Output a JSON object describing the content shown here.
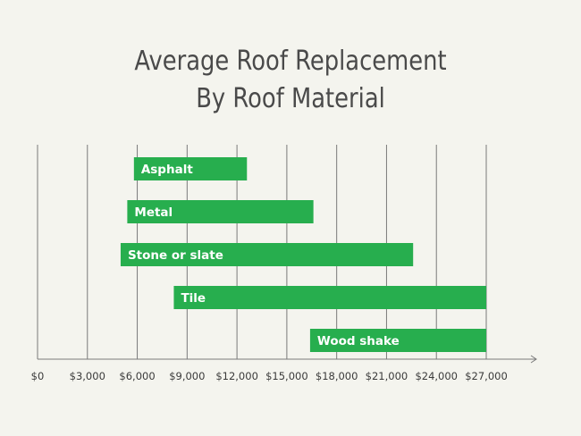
{
  "chart_data": {
    "type": "bar",
    "orientation": "horizontal-range",
    "title": [
      "Average Roof Replacement",
      "By Roof Material"
    ],
    "xlabel": "",
    "ylabel": "",
    "xlim": [
      0,
      27000
    ],
    "x_ticks": [
      0,
      3000,
      6000,
      9000,
      12000,
      15000,
      18000,
      21000,
      24000,
      27000
    ],
    "x_tick_labels": [
      "$0",
      "$3,000",
      "$6,000",
      "$9,000",
      "$12,000",
      "$15,000",
      "$18,000",
      "$21,000",
      "$24,000",
      "$27,000"
    ],
    "grid": true,
    "categories": [
      "Asphalt",
      "Metal",
      "Stone or slate",
      "Tile",
      "Wood shake"
    ],
    "series": [
      {
        "low": [
          5800,
          5400,
          5000,
          8200,
          16400
        ],
        "high": [
          12600,
          16600,
          22600,
          27000,
          27000
        ]
      }
    ],
    "colors": {
      "bar": "#27ae4e",
      "bar_label": "#ffffff",
      "grid": "#7a7a7a",
      "tick_label": "#3a3a3a",
      "title": "#4a4a4a"
    }
  }
}
